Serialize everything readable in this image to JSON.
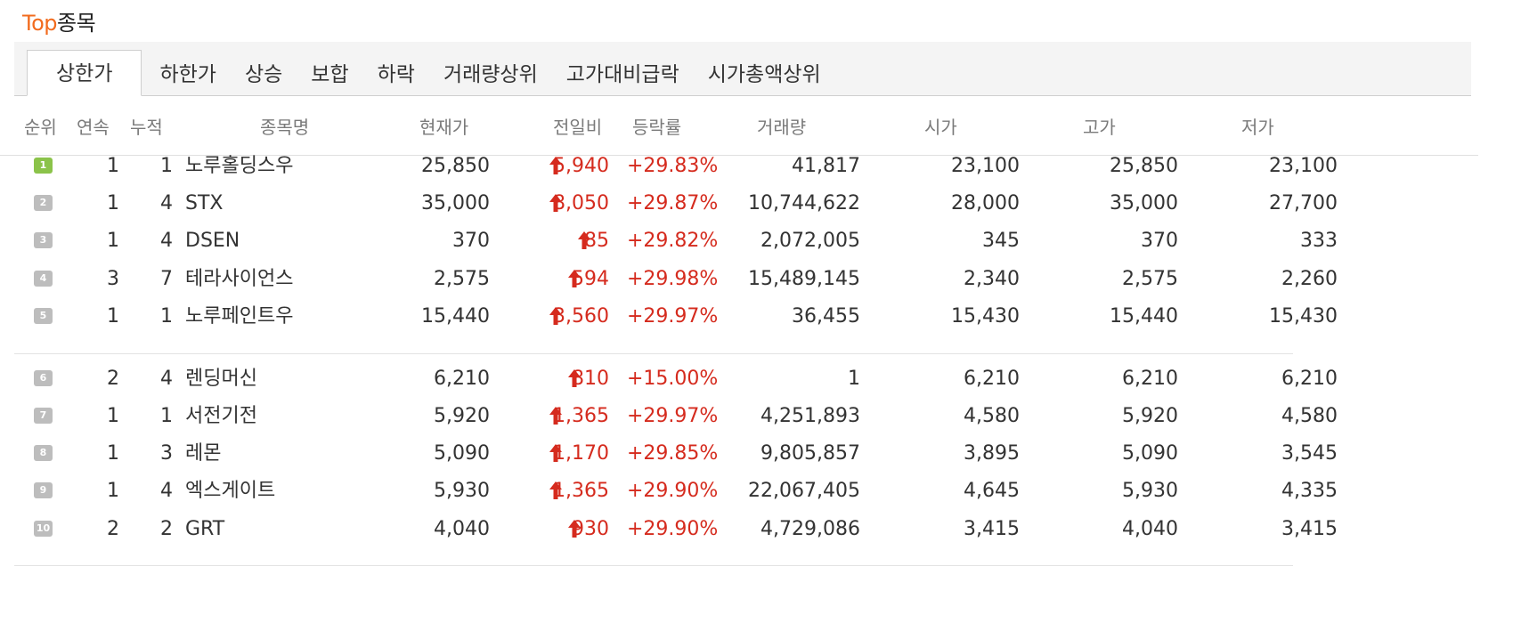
{
  "title": {
    "accent": "Top",
    "rest": "종목"
  },
  "tabs": [
    "상한가",
    "하한가",
    "상승",
    "보합",
    "하락",
    "거래량상위",
    "고가대비급락",
    "시가총액상위"
  ],
  "active_tab": 0,
  "columns": {
    "rank": "순위",
    "consecutive": "연속",
    "cumulative": "누적",
    "name": "종목명",
    "price": "현재가",
    "change": "전일비",
    "rate": "등락률",
    "volume": "거래량",
    "open": "시가",
    "high": "고가",
    "low": "저가"
  },
  "colors": {
    "accent": "#f26b1d",
    "up": "#d52b1e",
    "badge_first": "#8bc34a",
    "badge": "#bdbdbd"
  },
  "rows": [
    {
      "rank": "1",
      "consecutive": "1",
      "cumulative": "1",
      "name": "노루홀딩스우",
      "price": "25,850",
      "change": "5,940",
      "rate": "+29.83%",
      "volume": "41,817",
      "open": "23,100",
      "high": "25,850",
      "low": "23,100"
    },
    {
      "rank": "2",
      "consecutive": "1",
      "cumulative": "4",
      "name": "STX",
      "price": "35,000",
      "change": "8,050",
      "rate": "+29.87%",
      "volume": "10,744,622",
      "open": "28,000",
      "high": "35,000",
      "low": "27,700"
    },
    {
      "rank": "3",
      "consecutive": "1",
      "cumulative": "4",
      "name": "DSEN",
      "price": "370",
      "change": "85",
      "rate": "+29.82%",
      "volume": "2,072,005",
      "open": "345",
      "high": "370",
      "low": "333"
    },
    {
      "rank": "4",
      "consecutive": "3",
      "cumulative": "7",
      "name": "테라사이언스",
      "price": "2,575",
      "change": "594",
      "rate": "+29.98%",
      "volume": "15,489,145",
      "open": "2,340",
      "high": "2,575",
      "low": "2,260"
    },
    {
      "rank": "5",
      "consecutive": "1",
      "cumulative": "1",
      "name": "노루페인트우",
      "price": "15,440",
      "change": "3,560",
      "rate": "+29.97%",
      "volume": "36,455",
      "open": "15,430",
      "high": "15,440",
      "low": "15,430"
    },
    {
      "rank": "6",
      "consecutive": "2",
      "cumulative": "4",
      "name": "렌딩머신",
      "price": "6,210",
      "change": "810",
      "rate": "+15.00%",
      "volume": "1",
      "open": "6,210",
      "high": "6,210",
      "low": "6,210"
    },
    {
      "rank": "7",
      "consecutive": "1",
      "cumulative": "1",
      "name": "서전기전",
      "price": "5,920",
      "change": "1,365",
      "rate": "+29.97%",
      "volume": "4,251,893",
      "open": "4,580",
      "high": "5,920",
      "low": "4,580"
    },
    {
      "rank": "8",
      "consecutive": "1",
      "cumulative": "3",
      "name": "레몬",
      "price": "5,090",
      "change": "1,170",
      "rate": "+29.85%",
      "volume": "9,805,857",
      "open": "3,895",
      "high": "5,090",
      "low": "3,545"
    },
    {
      "rank": "9",
      "consecutive": "1",
      "cumulative": "4",
      "name": "엑스게이트",
      "price": "5,930",
      "change": "1,365",
      "rate": "+29.90%",
      "volume": "22,067,405",
      "open": "4,645",
      "high": "5,930",
      "low": "4,335"
    },
    {
      "rank": "10",
      "consecutive": "2",
      "cumulative": "2",
      "name": "GRT",
      "price": "4,040",
      "change": "930",
      "rate": "+29.90%",
      "volume": "4,729,086",
      "open": "3,415",
      "high": "4,040",
      "low": "3,415"
    }
  ]
}
